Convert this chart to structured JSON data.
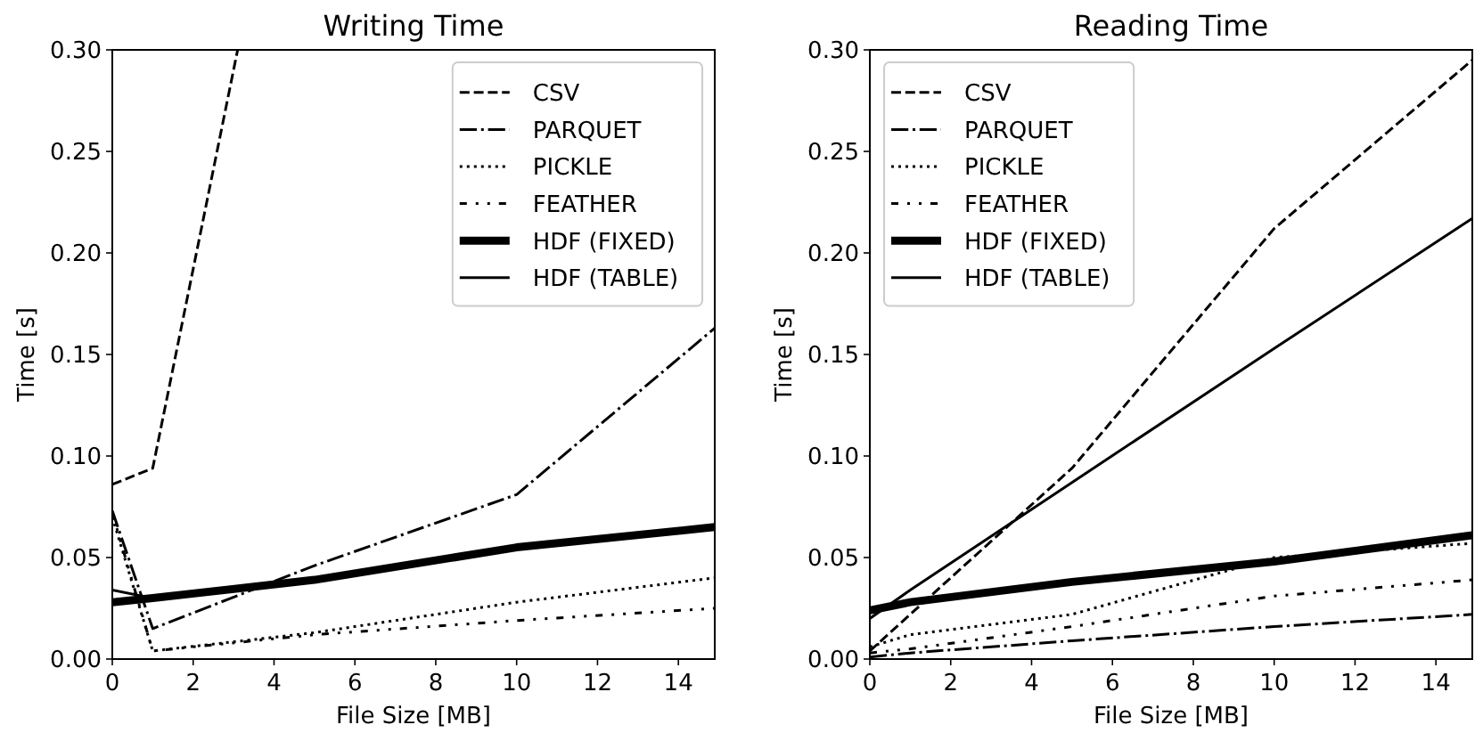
{
  "chart_data": [
    {
      "type": "line",
      "title": "Writing Time",
      "xlabel": "File Size [MB]",
      "ylabel": "Time [s]",
      "x": [
        0,
        1,
        5,
        10,
        14.9
      ],
      "xlim": [
        0,
        14.9
      ],
      "ylim": [
        0,
        0.3
      ],
      "xticks": [
        0,
        2,
        4,
        6,
        8,
        10,
        12,
        14
      ],
      "yticks": [
        {
          "value": 0,
          "label": "0.00"
        },
        {
          "value": 0.05,
          "label": "0.05"
        },
        {
          "value": 0.1,
          "label": "0.10"
        },
        {
          "value": 0.15,
          "label": "0.15"
        },
        {
          "value": 0.2,
          "label": "0.20"
        },
        {
          "value": 0.25,
          "label": "0.25"
        },
        {
          "value": 0.3,
          "label": "0.30"
        }
      ],
      "legend": "top right",
      "series": [
        {
          "name": "CSV",
          "color": "#000000",
          "line_style": "dashed",
          "x": [
            0,
            1,
            3.1
          ],
          "values": [
            0.086,
            0.094,
            0.3
          ]
        },
        {
          "name": "PARQUET",
          "color": "#000000",
          "line_style": "dashdot",
          "values": [
            0.073,
            0.015,
            0.046,
            0.081,
            0.163
          ]
        },
        {
          "name": "PICKLE",
          "color": "#000000",
          "line_style": "dotted",
          "values": [
            0.07,
            0.004,
            0.013,
            0.028,
            0.04
          ]
        },
        {
          "name": "FEATHER",
          "color": "#000000",
          "line_style": "dashdotdot",
          "values": [
            0.072,
            0.004,
            0.012,
            0.019,
            0.025
          ]
        },
        {
          "name": "HDF (FIXED)",
          "color": "#000000",
          "line_style": "solid",
          "values": [
            0.028,
            0.03,
            0.039,
            0.055,
            0.065
          ]
        },
        {
          "name": "HDF (TABLE)",
          "color": "#000000",
          "line_style": "solid",
          "values": [
            0.034,
            0.03,
            null,
            null,
            null
          ]
        }
      ]
    },
    {
      "type": "line",
      "title": "Reading Time",
      "xlabel": "File Size [MB]",
      "ylabel": "Time [s]",
      "x": [
        0,
        1,
        5,
        10,
        14.9
      ],
      "xlim": [
        0,
        14.9
      ],
      "ylim": [
        0,
        0.3
      ],
      "xticks": [
        0,
        2,
        4,
        6,
        8,
        10,
        12,
        14
      ],
      "yticks": [
        {
          "value": 0,
          "label": "0.00"
        },
        {
          "value": 0.05,
          "label": "0.05"
        },
        {
          "value": 0.1,
          "label": "0.10"
        },
        {
          "value": 0.15,
          "label": "0.15"
        },
        {
          "value": 0.2,
          "label": "0.20"
        },
        {
          "value": 0.25,
          "label": "0.25"
        },
        {
          "value": 0.3,
          "label": "0.30"
        }
      ],
      "legend": "top left",
      "series": [
        {
          "name": "CSV",
          "color": "#000000",
          "line_style": "dashed",
          "values": [
            0.004,
            0.022,
            0.094,
            0.212,
            0.295
          ]
        },
        {
          "name": "PARQUET",
          "color": "#000000",
          "line_style": "dashdot",
          "values": [
            0.001,
            0.003,
            0.009,
            0.016,
            0.022
          ]
        },
        {
          "name": "PICKLE",
          "color": "#000000",
          "line_style": "dotted",
          "values": [
            0.006,
            0.012,
            0.022,
            0.05,
            0.057
          ]
        },
        {
          "name": "FEATHER",
          "color": "#000000",
          "line_style": "dashdotdot",
          "values": [
            0.003,
            0.005,
            0.016,
            0.031,
            0.039
          ]
        },
        {
          "name": "HDF (FIXED)",
          "color": "#000000",
          "line_style": "solid",
          "values": [
            0.024,
            0.028,
            0.038,
            0.048,
            0.061
          ]
        },
        {
          "name": "HDF (TABLE)",
          "color": "#000000",
          "line_style": "solid",
          "values": [
            0.02,
            0.034,
            0.087,
            0.153,
            0.217
          ]
        }
      ]
    }
  ]
}
